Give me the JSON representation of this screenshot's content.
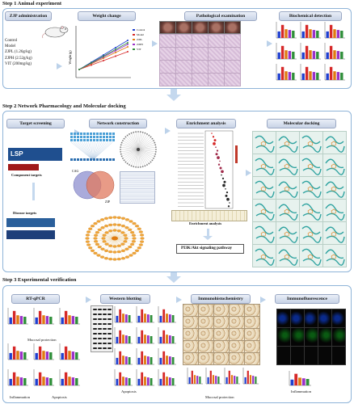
{
  "step1": {
    "title": "Step 1 Animal experiment",
    "headers": {
      "admin": "ZJP administration",
      "weight": "Weight change",
      "patho": "Pathological examination",
      "biochem": "Biochemical detection"
    },
    "groups": [
      "Control",
      "Model",
      "ZJPL (1.26g/kg)",
      "ZJPH (2.52g/kg)",
      "VIT (200mg/kg)"
    ],
    "weight_chart": {
      "ylabel": "Weight (g)",
      "legend": [
        "Control",
        "Model",
        "ZJPL",
        "ZJPH",
        "VIT"
      ]
    }
  },
  "step2": {
    "title": "Step 2 Network Pharmacology and Molecular docking",
    "headers": {
      "target": "Target screening",
      "network": "Network construction",
      "enrich": "Enrichment analysis",
      "docking": "Molecular docking"
    },
    "component_targets": "Component targets",
    "disease_targets": "Disease targets",
    "venn": {
      "left_label": "CAG",
      "right_label": "ZJP"
    },
    "enrich_label": "Enrichment analysis",
    "pathway": "PI3K/Akt signaling pathway"
  },
  "step3": {
    "title": "Step 3 Experimental verification",
    "headers": {
      "rtqpcr": "RT-qPCR",
      "western": "Western blotting",
      "ihc": "Immunohistochemistry",
      "if": "Immunofluorescence"
    },
    "labels": {
      "mucosal_protection_1": "Mucosal protection",
      "inflammation_1": "Inflammation",
      "apoptosis_1": "Apoptosis",
      "apoptosis_2": "Apoptosis",
      "mucosal_protection_2": "Mucosal protection",
      "inflammation_2": "Inflammation"
    }
  },
  "colors": {
    "panel_border": "#8fb4d8",
    "arrow": "#c4d8ee",
    "series": [
      "#1f3fd0",
      "#d62828",
      "#e07b10",
      "#9b30c8",
      "#2f8f3a"
    ]
  }
}
